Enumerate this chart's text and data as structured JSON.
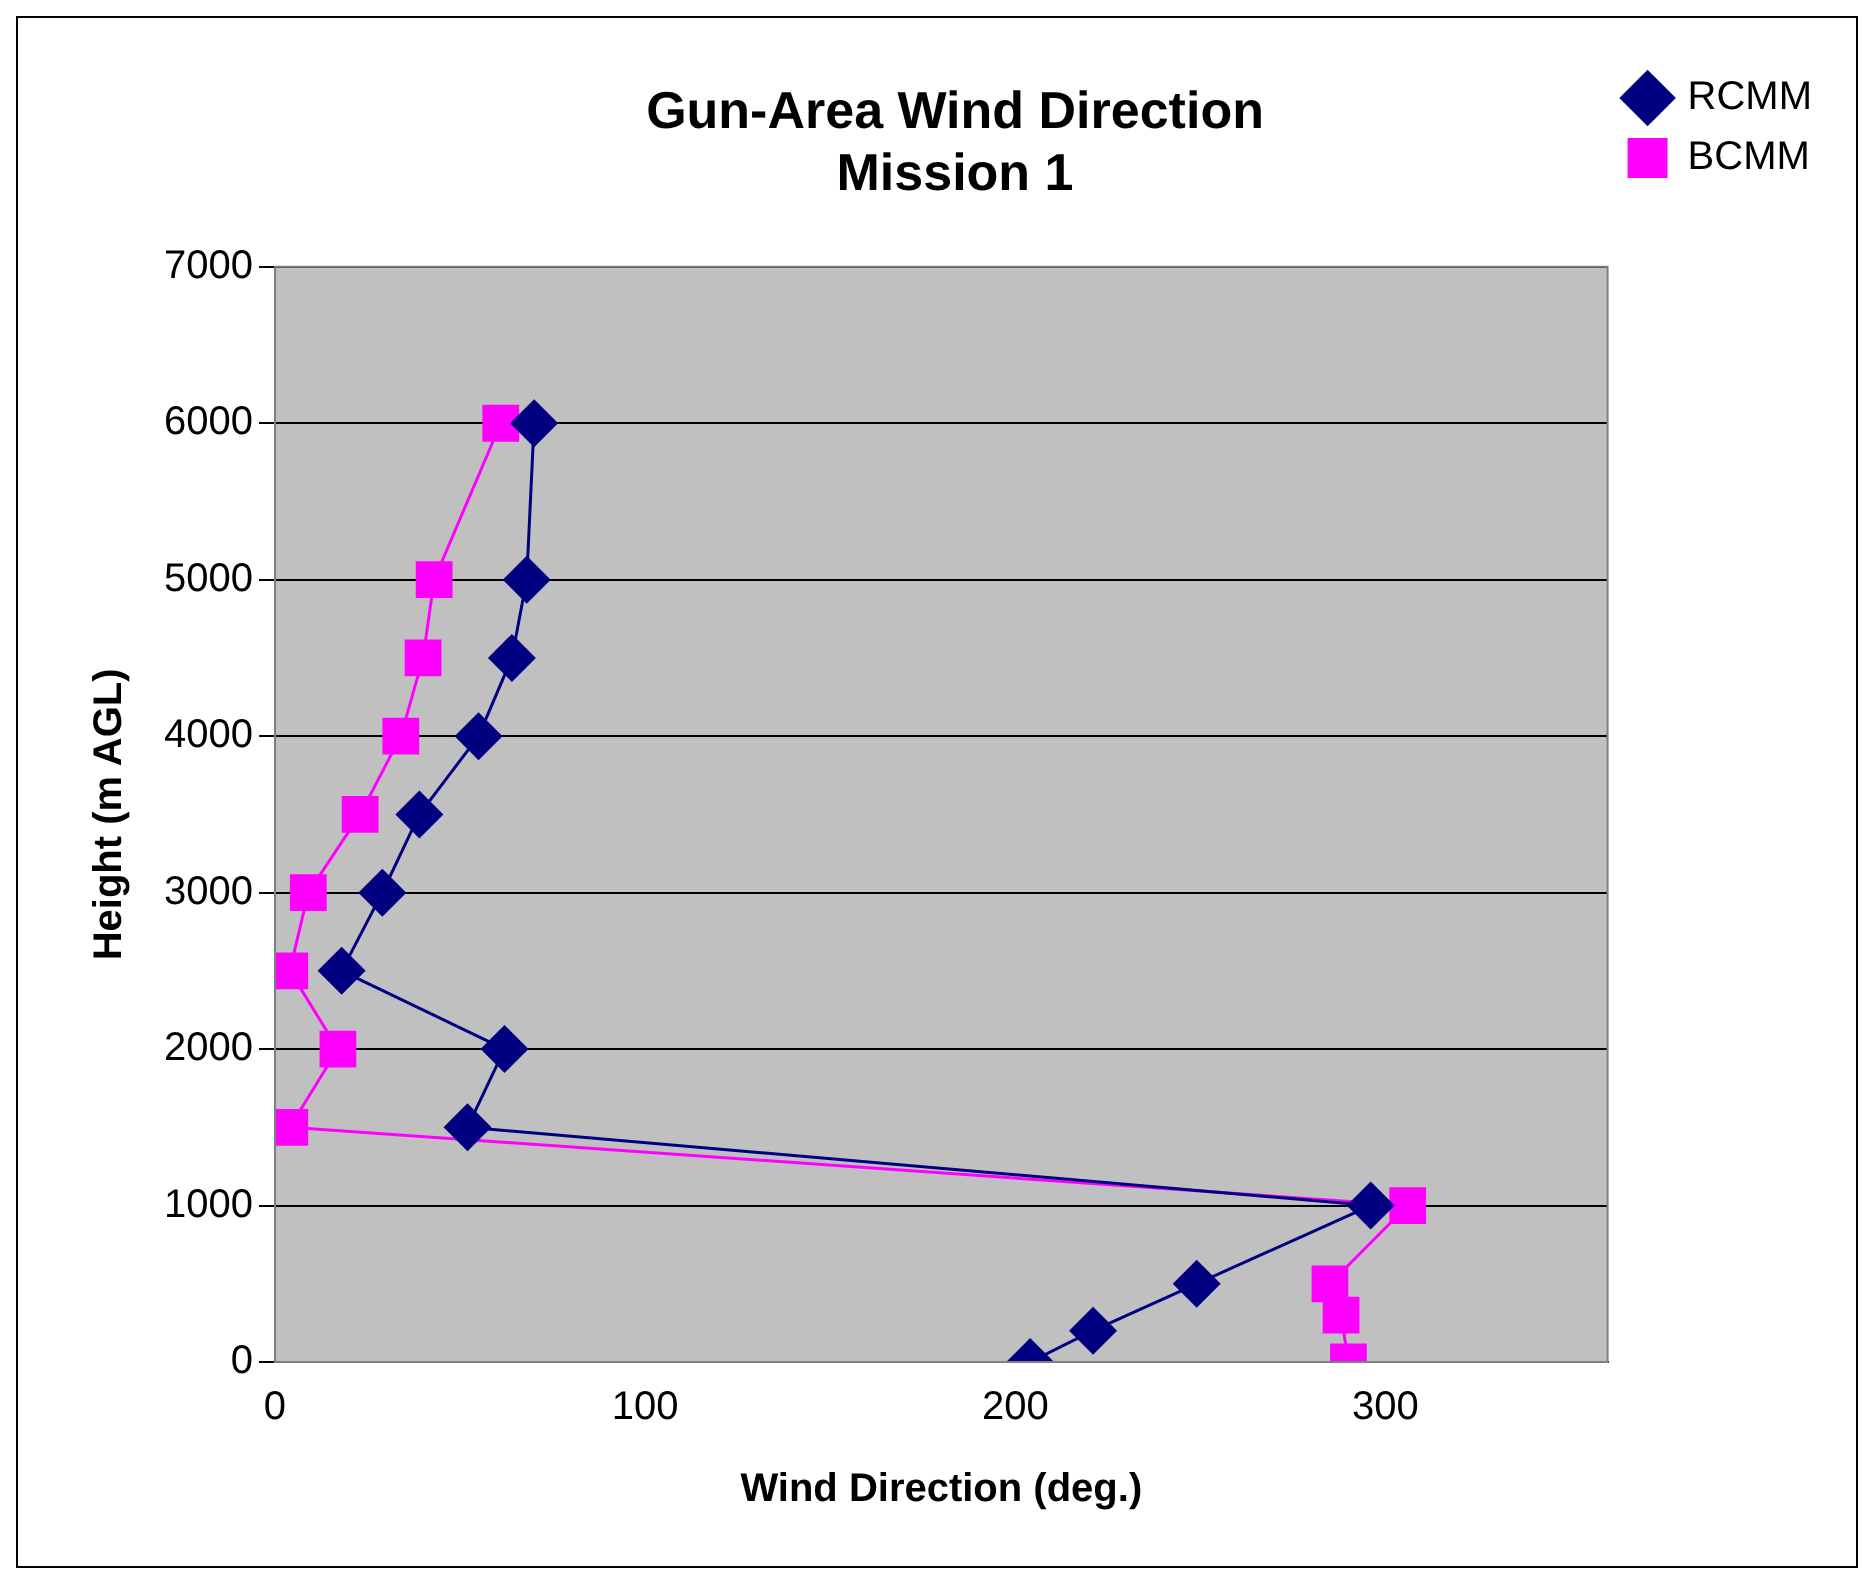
{
  "chart_data": {
    "type": "line",
    "title": "Gun-Area Wind Direction\nMission 1",
    "xlabel": "Wind Direction (deg.)",
    "ylabel": "Height (m AGL)",
    "xlim": [
      0,
      360
    ],
    "xticks": [
      0,
      100,
      200,
      300
    ],
    "ylim": [
      0,
      7000
    ],
    "yticks": [
      0,
      1000,
      2000,
      3000,
      4000,
      5000,
      6000,
      7000
    ],
    "grid": "y",
    "legend": "top right",
    "line_style": "solid",
    "series": [
      {
        "name": "RCMM",
        "color": "#000080",
        "marker": "diamond",
        "x": [
          204,
          221,
          249,
          296,
          52,
          62,
          18,
          29,
          39,
          55,
          64,
          68,
          70
        ],
        "values": [
          0,
          200,
          500,
          1000,
          1500,
          2000,
          2500,
          3000,
          3500,
          4000,
          4500,
          5000,
          6000
        ]
      },
      {
        "name": "BCMM",
        "color": "#ff00ff",
        "marker": "square",
        "x": [
          290,
          288,
          285,
          306,
          4,
          17,
          4,
          9,
          23,
          34,
          40,
          43,
          61
        ],
        "values": [
          0,
          300,
          500,
          1000,
          1500,
          2000,
          2500,
          3000,
          3500,
          4000,
          4500,
          5000,
          6000
        ]
      }
    ]
  }
}
